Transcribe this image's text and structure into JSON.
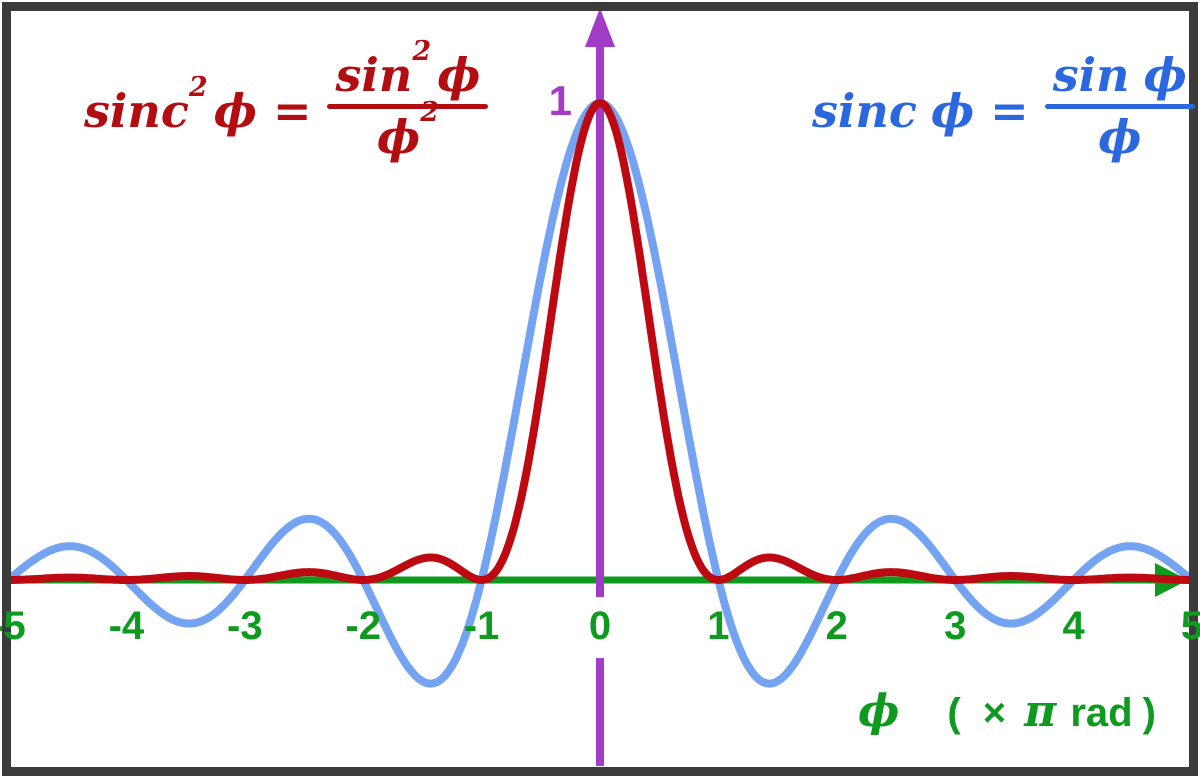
{
  "frame": {
    "background": "#ffffff",
    "border_color": "#3b3b3b"
  },
  "formulas": {
    "sinc_squared": {
      "color": "#b20d11",
      "lhs_base": "sinc",
      "lhs_sup": "2",
      "lhs_var": "ϕ",
      "equals": "=",
      "num_base": "sin",
      "num_sup": "2",
      "num_var": "ϕ",
      "den_var": "ϕ",
      "den_sup": "2"
    },
    "sinc": {
      "color": "#2b67de",
      "lhs_base": "sinc",
      "lhs_var": "ϕ",
      "equals": "=",
      "num_base": "sin",
      "num_var": "ϕ",
      "den_var": "ϕ"
    }
  },
  "axes": {
    "x": {
      "color": "#0e9a1e",
      "label": {
        "phi": "ϕ",
        "open": "(",
        "times": "×",
        "pi": "π",
        "rad": "rad",
        "close": ")"
      }
    },
    "y": {
      "color": "#a23cc6",
      "peak_label": "1"
    }
  },
  "chart_data": {
    "type": "line",
    "title": "",
    "xlabel": "ϕ (×π rad)",
    "ylabel": "",
    "x_range": [
      -5,
      5
    ],
    "y_range": [
      -0.39,
      1.19
    ],
    "x_ticks": [
      -5,
      -4,
      -3,
      -2,
      -1,
      0,
      1,
      2,
      3,
      4,
      5
    ],
    "grid": false,
    "legend_position": "none",
    "axis_style": {
      "x_axis_color": "#0e9a1e",
      "y_axis_color": "#a23cc6",
      "x_axis_arrow": "right",
      "y_axis_arrow": "up"
    },
    "series": [
      {
        "name": "sinc ϕ = sin ϕ / ϕ",
        "fn": "sinc",
        "color": "#74a3f2",
        "stroke_width": 8,
        "points": [
          [
            -5,
            0
          ],
          [
            -4.5,
            0.0707
          ],
          [
            -4,
            0
          ],
          [
            -3.5,
            -0.0909
          ],
          [
            -3,
            0
          ],
          [
            -2.5,
            0.1273
          ],
          [
            -2,
            0
          ],
          [
            -1.5,
            -0.2122
          ],
          [
            -1,
            0
          ],
          [
            -0.5,
            0.6366
          ],
          [
            0,
            1
          ],
          [
            0.5,
            0.6366
          ],
          [
            1,
            0
          ],
          [
            1.5,
            -0.2122
          ],
          [
            2,
            0
          ],
          [
            2.5,
            0.1273
          ],
          [
            3,
            0
          ],
          [
            3.5,
            -0.0909
          ],
          [
            4,
            0
          ],
          [
            4.5,
            0.0707
          ],
          [
            5,
            0
          ]
        ]
      },
      {
        "name": "sinc²ϕ = sin²ϕ / ϕ²",
        "fn": "sinc_squared",
        "color": "#bd0a12",
        "stroke_width": 8,
        "points": [
          [
            -5,
            0
          ],
          [
            -4.5,
            0.005
          ],
          [
            -4,
            0
          ],
          [
            -3.5,
            0.0083
          ],
          [
            -3,
            0
          ],
          [
            -2.5,
            0.0162
          ],
          [
            -2,
            0
          ],
          [
            -1.5,
            0.045
          ],
          [
            -1,
            0
          ],
          [
            -0.5,
            0.4053
          ],
          [
            0,
            1
          ],
          [
            0.5,
            0.4053
          ],
          [
            1,
            0
          ],
          [
            1.5,
            0.045
          ],
          [
            2,
            0
          ],
          [
            2.5,
            0.0162
          ],
          [
            3,
            0
          ],
          [
            3.5,
            0.0083
          ],
          [
            4,
            0
          ],
          [
            4.5,
            0.005
          ],
          [
            5,
            0
          ]
        ]
      }
    ],
    "annotations": [
      {
        "text": "1",
        "x": 0,
        "y": 1,
        "color": "#a23cc6"
      }
    ]
  }
}
